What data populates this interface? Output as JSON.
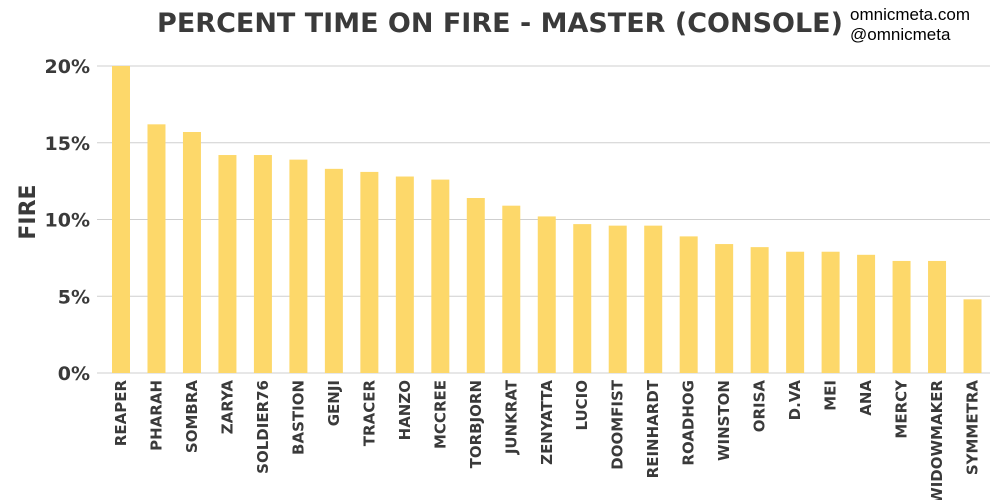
{
  "header": {
    "site": "omnicmeta.com",
    "handle": "@omnicmeta"
  },
  "chart_data": {
    "type": "bar",
    "title": "PERCENT TIME ON FIRE - MASTER (CONSOLE)",
    "xlabel": "",
    "ylabel": "FIRE",
    "ylim": [
      0,
      20
    ],
    "yticks": [
      0,
      5,
      10,
      15,
      20
    ],
    "ytick_labels": [
      "0%",
      "5%",
      "10%",
      "15%",
      "20%"
    ],
    "grid": true,
    "bar_color": "#fdd86a",
    "categories": [
      "REAPER",
      "PHARAH",
      "SOMBRA",
      "ZARYA",
      "SOLDIER76",
      "BASTION",
      "GENJI",
      "TRACER",
      "HANZO",
      "MCCREE",
      "TORBJORN",
      "JUNKRAT",
      "ZENYATTA",
      "LUCIO",
      "DOOMFIST",
      "REINHARDT",
      "ROADHOG",
      "WINSTON",
      "ORISA",
      "D.VA",
      "MEI",
      "ANA",
      "MERCY",
      "WIDOWMAKER",
      "SYMMETRA"
    ],
    "values": [
      20.0,
      16.2,
      15.7,
      14.2,
      14.2,
      13.9,
      13.3,
      13.1,
      12.8,
      12.6,
      11.4,
      10.9,
      10.2,
      9.7,
      9.6,
      9.6,
      8.9,
      8.4,
      8.2,
      7.9,
      7.9,
      7.7,
      7.3,
      7.3,
      4.8
    ]
  }
}
